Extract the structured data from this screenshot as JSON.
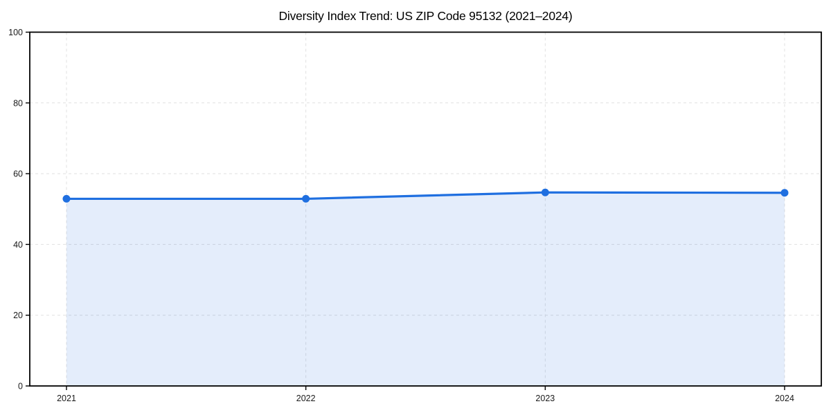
{
  "chart_data": {
    "type": "line",
    "title": "Diversity Index Trend: US ZIP Code 95132 (2021–2024)",
    "x": [
      "2021",
      "2022",
      "2023",
      "2024"
    ],
    "series": [
      {
        "name": "Diversity Index",
        "values": [
          52.9,
          52.9,
          54.7,
          54.6
        ]
      }
    ],
    "xlabel": "",
    "ylabel": "",
    "ylim": [
      0,
      100
    ],
    "yticks": [
      0,
      20,
      40,
      60,
      80,
      100
    ],
    "grid": "dashed both axes",
    "legend": "none",
    "marker": "circle",
    "area_fill": true,
    "colors": {
      "line": "#1f6fe0",
      "fill": "rgba(31,111,224,0.12)",
      "grid": "#e0e0e0",
      "axis": "#000000",
      "tick_text": "#1a1a1a",
      "background": "#ffffff"
    }
  }
}
